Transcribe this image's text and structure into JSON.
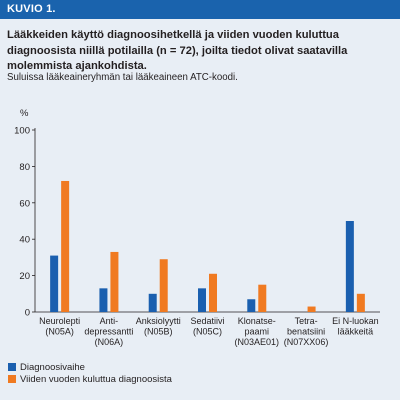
{
  "header": {
    "label": "KUVIO 1."
  },
  "title": "Lääkkeiden käyttö diagnoosihetkellä ja viiden vuoden kuluttua diagnoosista niillä potilailla (n = 72), joilta tiedot olivat saatavilla molemmista ajankohdista.",
  "subtitle": "Suluissa lääkeaineryhmän tai lääkeaineen ATC-koodi.",
  "colors": {
    "background": "#e8eef5",
    "header": "#1a63ad",
    "series1": "#1a5faf",
    "series2": "#f07a21"
  },
  "chart_data": {
    "type": "bar",
    "ylabel": "%",
    "ylim": [
      0,
      100
    ],
    "yticks": [
      0,
      20,
      40,
      60,
      80,
      100
    ],
    "grid": false,
    "legend_position": "bottom-left",
    "categories": [
      [
        "Neurolepti",
        "(N05A)"
      ],
      [
        "Anti-",
        "depressantti",
        "(N06A)"
      ],
      [
        "Anksiolyytti",
        "(N05B)"
      ],
      [
        "Sedatiivi",
        "(N05C)"
      ],
      [
        "Klonatse-",
        "paami",
        "(N03AE01)"
      ],
      [
        "Tetra-",
        "benatsiini",
        "(N07XX06)"
      ],
      [
        "Ei N-luokan",
        "lääkkeitä"
      ]
    ],
    "series": [
      {
        "name": "Diagnoosivaihe",
        "values": [
          31,
          13,
          10,
          13,
          7,
          0,
          50
        ]
      },
      {
        "name": "Viiden vuoden kuluttua diagnoosista",
        "values": [
          72,
          33,
          29,
          21,
          15,
          3,
          10
        ]
      }
    ]
  }
}
